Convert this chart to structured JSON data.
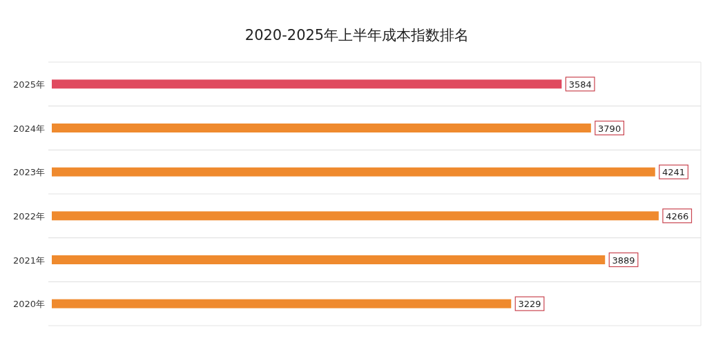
{
  "chart_data": {
    "type": "bar",
    "orientation": "horizontal",
    "title": "2020-2025年上半年成本指数排名",
    "categories": [
      "2025年",
      "2024年",
      "2023年",
      "2022年",
      "2021年",
      "2020年"
    ],
    "values": [
      3584,
      3790,
      4241,
      4266,
      3889,
      3229
    ],
    "colors": [
      "#e04a5f",
      "#ef8a2e",
      "#ef8a2e",
      "#ef8a2e",
      "#ef8a2e",
      "#ef8a2e"
    ],
    "data_labels": true,
    "grid": "y"
  }
}
